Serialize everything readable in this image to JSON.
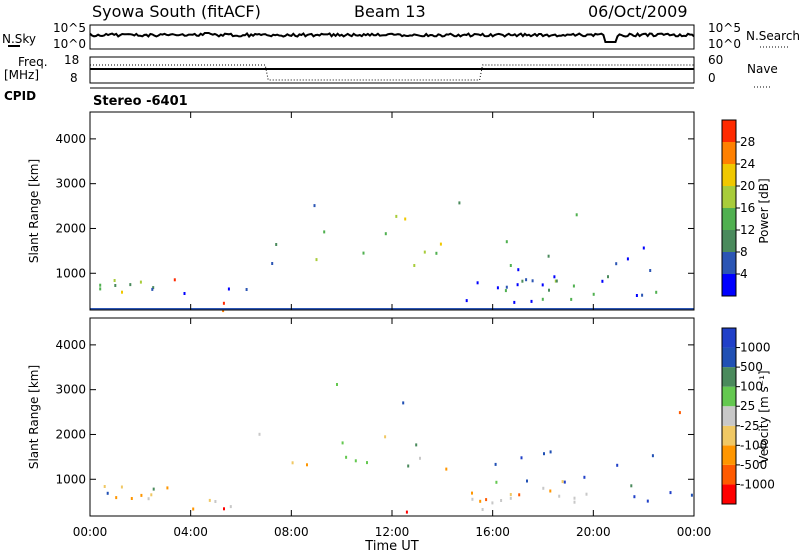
{
  "header": {
    "station": "Syowa South (fitACF)",
    "beam": "Beam 13",
    "date": "06/Oct/2009"
  },
  "left_labels": {
    "nsky": "N.Sky",
    "freq_line1": "Freq.",
    "freq_line2": "[MHz]",
    "cpid": "CPID"
  },
  "right_labels": {
    "nsearch": "N.Search",
    "nave": "Nave"
  },
  "cpid_text": "Stereo  -6401",
  "colors": {
    "power": [
      "#0000ff",
      "#2b55b4",
      "#4a8a5c",
      "#50b050",
      "#a8cc3a",
      "#f0c800",
      "#ff8000",
      "#ff2a00"
    ],
    "velocity": [
      "#ff0000",
      "#ff5a00",
      "#ff9600",
      "#f0c864",
      "#c8c8c8",
      "#64c850",
      "#4a8a5c",
      "#2050b4",
      "#2040c8"
    ]
  },
  "chart_data": [
    {
      "type": "line",
      "panel": "noise",
      "left_axis": {
        "label": "N.Sky",
        "ticks": [
          "10^5",
          "10^0"
        ]
      },
      "right_axis": {
        "label": "N.Search",
        "ticks": [
          "10^5",
          "10^0"
        ]
      },
      "x_range_hours": [
        0,
        24
      ],
      "series": [
        {
          "values_approx": "near top of range throughout day, dip near 22:00"
        }
      ]
    },
    {
      "type": "line",
      "panel": "frequency",
      "left_axis": {
        "label": "Freq. [MHz]",
        "ticks": [
          "18",
          "8"
        ]
      },
      "right_axis": {
        "label": "Nave",
        "ticks": [
          "60",
          "0"
        ]
      },
      "x_range_hours": [
        0,
        24
      ]
    },
    {
      "type": "heatmap",
      "panel": "power",
      "ylabel": "Slant Range [km]",
      "yticks": [
        "4000",
        "3000",
        "2000",
        "1000"
      ],
      "ylim": [
        180,
        4600
      ],
      "xlim": [
        0,
        24
      ],
      "colorbar": {
        "label": "Power [dB]",
        "ticks": [
          "28",
          "24",
          "20",
          "16",
          "12",
          "8",
          "4"
        ]
      }
    },
    {
      "type": "heatmap",
      "panel": "velocity",
      "ylabel": "Slant Range [km]",
      "yticks": [
        "4000",
        "3000",
        "2000",
        "1000"
      ],
      "ylim": [
        180,
        4600
      ],
      "xlim": [
        0,
        24
      ],
      "xlabel": "Time UT",
      "xticks": [
        "00:00",
        "04:00",
        "08:00",
        "12:00",
        "16:00",
        "20:00",
        "00:00"
      ],
      "colorbar": {
        "label": "Velocity [m s⁻¹]",
        "ticks": [
          "1000",
          "500",
          "100",
          "25",
          "-25",
          "-100",
          "-500",
          "-1000"
        ]
      }
    }
  ]
}
